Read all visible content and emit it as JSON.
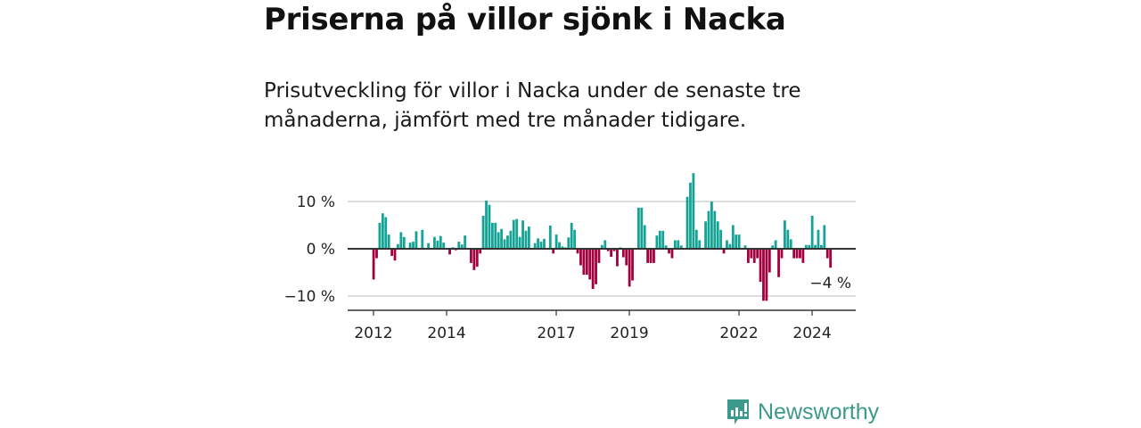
{
  "header": {
    "title": "Priserna på villor sjönk i Nacka",
    "subtitle": "Prisutveckling för villor i Nacka under de senaste tre månaderna, jämfört med tre månader tidigare."
  },
  "colors": {
    "positive": "#14a394",
    "negative": "#a2003e",
    "grid": "#dddddd",
    "axis": "#333333",
    "logo": "#3c9a8c"
  },
  "chart_data": {
    "type": "bar",
    "title": "Priserna på villor sjönk i Nacka",
    "xlabel": "",
    "ylabel": "",
    "ylim": [
      -12,
      17
    ],
    "grid": true,
    "start": "2012-01",
    "frequency": "monthly",
    "yticks": [
      {
        "value": 10,
        "label": "10 %"
      },
      {
        "value": 0,
        "label": "0 %"
      },
      {
        "value": -10,
        "label": "−10 %"
      }
    ],
    "xticks": [
      {
        "index": 0,
        "label": "2012"
      },
      {
        "index": 24,
        "label": "2014"
      },
      {
        "index": 60,
        "label": "2017"
      },
      {
        "index": 84,
        "label": "2019"
      },
      {
        "index": 120,
        "label": "2022"
      },
      {
        "index": 144,
        "label": "2024"
      }
    ],
    "annotation": "−4 %",
    "values": [
      -6.5,
      -2,
      5.5,
      7.5,
      6.7,
      3,
      -1.5,
      -2.5,
      1,
      3.5,
      2.5,
      0,
      1.3,
      1.5,
      3.7,
      0,
      4,
      0,
      1.2,
      0,
      2.5,
      1.7,
      2.7,
      1.3,
      0,
      -1.2,
      0.3,
      -0.3,
      1.5,
      0.9,
      2.8,
      0,
      -3,
      -4.5,
      -3.8,
      -1,
      7,
      10.2,
      9.3,
      5.5,
      5.5,
      3.5,
      4.2,
      2,
      2.8,
      3.8,
      6.1,
      6.3,
      2.5,
      6,
      3.8,
      4.7,
      0,
      1.2,
      2.2,
      1.5,
      2.1,
      0,
      4.9,
      -1,
      3,
      1.4,
      0.5,
      0.3,
      2.4,
      5.5,
      4,
      -1,
      -3.5,
      -5.5,
      -5.5,
      -6.5,
      -8.5,
      -7.5,
      -3,
      0.8,
      1.8,
      -0.5,
      -1.7,
      -0.5,
      -3.7,
      0.3,
      -1.8,
      -3.5,
      -8,
      -6.7,
      0,
      8.7,
      8.7,
      5,
      -3,
      -3,
      -3,
      2.8,
      3.8,
      3.8,
      0.7,
      -1,
      -2,
      1.8,
      1.8,
      0.7,
      0,
      11,
      14,
      16,
      4,
      1.8,
      0,
      5.8,
      8,
      10,
      8,
      5.8,
      4,
      -1,
      1.8,
      1,
      5,
      3,
      3,
      0,
      0.7,
      -3,
      -2,
      -3,
      -2,
      -7,
      -11,
      -11,
      -5,
      0.7,
      1.8,
      -6,
      -2,
      6,
      4,
      2,
      -2,
      -2,
      -2,
      -3,
      0.8,
      0.8,
      7,
      0.8,
      4,
      0.8,
      5,
      -2,
      -4
    ]
  },
  "logo": {
    "text": "Newsworthy"
  }
}
